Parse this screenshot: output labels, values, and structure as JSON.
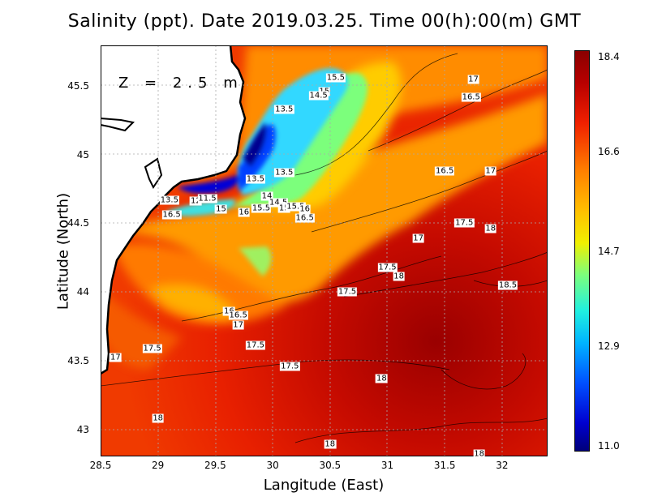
{
  "title": "Salinity (ppt). Date 2019.03.25. Time 00(h):00(m) GMT",
  "depth_label": "Z = 2.5 m",
  "chart_data": {
    "type": "heatmap",
    "variable": "Salinity",
    "units": "ppt",
    "xlabel": "Langitude (East)",
    "ylabel": "Latitude (North)",
    "xlim": [
      28.5,
      32.4
    ],
    "ylim": [
      42.8,
      45.8
    ],
    "x_ticks": [
      "28.5",
      "29",
      "29.5",
      "30",
      "30.5",
      "31",
      "31.5",
      "32"
    ],
    "y_ticks": [
      "43",
      "43.5",
      "44",
      "44.5",
      "45",
      "45.5"
    ],
    "grid": true,
    "colorbar": {
      "min": 11.0,
      "max": 18.4,
      "ticks": [
        "18.4",
        "16.6",
        "14.7",
        "12.9",
        "11.0"
      ]
    },
    "contour_labels": [
      {
        "text": "15.5",
        "lon": 30.55,
        "lat": 45.56
      },
      {
        "text": "17",
        "lon": 31.75,
        "lat": 45.55
      },
      {
        "text": "16.5",
        "lon": 31.73,
        "lat": 45.42
      },
      {
        "text": "15",
        "lon": 30.45,
        "lat": 45.46
      },
      {
        "text": "14.5",
        "lon": 30.4,
        "lat": 45.43
      },
      {
        "text": "13.5",
        "lon": 30.1,
        "lat": 45.33
      },
      {
        "text": "13.5",
        "lon": 30.1,
        "lat": 44.87
      },
      {
        "text": "13.5",
        "lon": 29.85,
        "lat": 44.82
      },
      {
        "text": "16.5",
        "lon": 31.5,
        "lat": 44.88
      },
      {
        "text": "17",
        "lon": 31.9,
        "lat": 44.88
      },
      {
        "text": "13.5",
        "lon": 29.1,
        "lat": 44.67
      },
      {
        "text": "12",
        "lon": 29.33,
        "lat": 44.66
      },
      {
        "text": "11.5",
        "lon": 29.43,
        "lat": 44.68
      },
      {
        "text": "15",
        "lon": 29.55,
        "lat": 44.6
      },
      {
        "text": "16.5",
        "lon": 29.12,
        "lat": 44.56
      },
      {
        "text": "16",
        "lon": 29.75,
        "lat": 44.58
      },
      {
        "text": "15.5",
        "lon": 29.9,
        "lat": 44.61
      },
      {
        "text": "14",
        "lon": 29.95,
        "lat": 44.7
      },
      {
        "text": "14.5",
        "lon": 30.05,
        "lat": 44.65
      },
      {
        "text": "15",
        "lon": 30.1,
        "lat": 44.61
      },
      {
        "text": "15.5",
        "lon": 30.2,
        "lat": 44.62
      },
      {
        "text": "16",
        "lon": 30.28,
        "lat": 44.6
      },
      {
        "text": "16.5",
        "lon": 30.28,
        "lat": 44.54
      },
      {
        "text": "17.5",
        "lon": 31.67,
        "lat": 44.5
      },
      {
        "text": "18",
        "lon": 31.9,
        "lat": 44.46
      },
      {
        "text": "17",
        "lon": 31.27,
        "lat": 44.39
      },
      {
        "text": "17.5",
        "lon": 31.0,
        "lat": 44.18
      },
      {
        "text": "18",
        "lon": 31.1,
        "lat": 44.11
      },
      {
        "text": "18.5",
        "lon": 32.05,
        "lat": 44.05
      },
      {
        "text": "17.5",
        "lon": 30.65,
        "lat": 44.0
      },
      {
        "text": "16",
        "lon": 29.62,
        "lat": 43.86
      },
      {
        "text": "16.5",
        "lon": 29.7,
        "lat": 43.83
      },
      {
        "text": "17",
        "lon": 29.7,
        "lat": 43.76
      },
      {
        "text": "17.5",
        "lon": 28.95,
        "lat": 43.59
      },
      {
        "text": "17.5",
        "lon": 29.85,
        "lat": 43.61
      },
      {
        "text": "17",
        "lon": 28.63,
        "lat": 43.52
      },
      {
        "text": "17.5",
        "lon": 30.15,
        "lat": 43.46
      },
      {
        "text": "18",
        "lon": 30.95,
        "lat": 43.37
      },
      {
        "text": "18",
        "lon": 29.0,
        "lat": 43.08
      },
      {
        "text": "18",
        "lon": 30.5,
        "lat": 42.89
      },
      {
        "text": "18",
        "lon": 31.8,
        "lat": 42.82
      }
    ]
  }
}
